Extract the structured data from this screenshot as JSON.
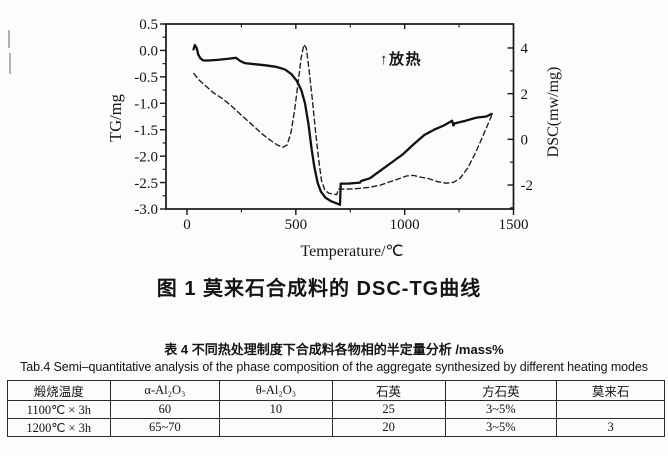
{
  "figure": {
    "caption": "图 1  莫来石合成料的 DSC-TG曲线",
    "xlabel": "Temperature/℃",
    "ylabel_left": "TG/mg",
    "ylabel_right": "DSC(mw/mg)",
    "annotation": "↑放热"
  },
  "chart_data": {
    "type": "line",
    "title": "图 1 莫来石合成料的 DSC-TG曲线",
    "xlabel": "Temperature/℃",
    "ylabel_left": "TG/mg",
    "ylabel_right": "DSC(mw/mg)",
    "xlim": [
      -96.5,
      1500
    ],
    "ylim_left": [
      -3.0,
      0.5
    ],
    "ylim_right": [
      -3.05,
      5.05
    ],
    "x_ticks": [
      0,
      500,
      1000,
      1500
    ],
    "x_minor_ticks": [
      250,
      750,
      1250
    ],
    "top_ticks": [
      250,
      500,
      750,
      1000,
      1250
    ],
    "y_left_ticks": [
      0.5,
      0.0,
      -0.5,
      -1.0,
      -1.5,
      -2.0,
      -2.5,
      -3.0
    ],
    "y_left_minor_ticks": [
      0.25,
      -0.25,
      -0.75,
      -1.25,
      -1.75,
      -2.25,
      -2.75
    ],
    "y_right_ticks": [
      4,
      2,
      0,
      -2
    ],
    "y_right_minor_ticks": [
      3,
      1,
      -1,
      -3
    ],
    "grid": false,
    "legend": "none",
    "annotation": "↑放热 (exothermic up)",
    "series": [
      {
        "name": "TG",
        "axis": "left",
        "style": "solid",
        "points": [
          [
            30,
            0.02
          ],
          [
            36,
            0.1
          ],
          [
            44,
            0.05
          ],
          [
            52,
            -0.08
          ],
          [
            62,
            -0.15
          ],
          [
            75,
            -0.19
          ],
          [
            100,
            -0.19
          ],
          [
            140,
            -0.18
          ],
          [
            185,
            -0.16
          ],
          [
            225,
            -0.14
          ],
          [
            245,
            -0.2
          ],
          [
            265,
            -0.24
          ],
          [
            310,
            -0.26
          ],
          [
            355,
            -0.28
          ],
          [
            410,
            -0.31
          ],
          [
            450,
            -0.36
          ],
          [
            480,
            -0.45
          ],
          [
            505,
            -0.58
          ],
          [
            525,
            -0.75
          ],
          [
            542,
            -1.0
          ],
          [
            558,
            -1.4
          ],
          [
            572,
            -1.85
          ],
          [
            585,
            -2.2
          ],
          [
            600,
            -2.5
          ],
          [
            615,
            -2.67
          ],
          [
            635,
            -2.78
          ],
          [
            660,
            -2.85
          ],
          [
            685,
            -2.89
          ],
          [
            703,
            -2.92
          ],
          [
            706,
            -2.52
          ],
          [
            740,
            -2.52
          ],
          [
            795,
            -2.5
          ],
          [
            800,
            -2.47
          ],
          [
            840,
            -2.42
          ],
          [
            890,
            -2.27
          ],
          [
            940,
            -2.12
          ],
          [
            990,
            -1.97
          ],
          [
            1040,
            -1.78
          ],
          [
            1090,
            -1.6
          ],
          [
            1135,
            -1.5
          ],
          [
            1180,
            -1.42
          ],
          [
            1218,
            -1.33
          ],
          [
            1224,
            -1.42
          ],
          [
            1230,
            -1.38
          ],
          [
            1280,
            -1.33
          ],
          [
            1330,
            -1.27
          ],
          [
            1375,
            -1.25
          ],
          [
            1400,
            -1.2
          ]
        ]
      },
      {
        "name": "DSC",
        "axis": "right",
        "style": "dashed",
        "points": [
          [
            30,
            2.9
          ],
          [
            55,
            2.6
          ],
          [
            85,
            2.35
          ],
          [
            120,
            2.05
          ],
          [
            160,
            1.8
          ],
          [
            200,
            1.5
          ],
          [
            240,
            1.15
          ],
          [
            280,
            0.8
          ],
          [
            315,
            0.5
          ],
          [
            350,
            0.2
          ],
          [
            385,
            -0.05
          ],
          [
            415,
            -0.25
          ],
          [
            440,
            -0.35
          ],
          [
            460,
            -0.25
          ],
          [
            478,
            0.3
          ],
          [
            495,
            1.3
          ],
          [
            512,
            2.6
          ],
          [
            525,
            3.6
          ],
          [
            537,
            4.15
          ],
          [
            548,
            4.0
          ],
          [
            560,
            3.1
          ],
          [
            575,
            1.8
          ],
          [
            590,
            0.4
          ],
          [
            605,
            -0.9
          ],
          [
            618,
            -1.8
          ],
          [
            632,
            -2.2
          ],
          [
            650,
            -2.35
          ],
          [
            670,
            -2.4
          ],
          [
            688,
            -2.42
          ],
          [
            695,
            -2.18
          ],
          [
            740,
            -2.18
          ],
          [
            790,
            -2.15
          ],
          [
            840,
            -2.1
          ],
          [
            890,
            -2.0
          ],
          [
            935,
            -1.85
          ],
          [
            975,
            -1.72
          ],
          [
            1010,
            -1.6
          ],
          [
            1040,
            -1.58
          ],
          [
            1070,
            -1.65
          ],
          [
            1110,
            -1.72
          ],
          [
            1150,
            -1.85
          ],
          [
            1190,
            -1.92
          ],
          [
            1225,
            -1.88
          ],
          [
            1255,
            -1.7
          ],
          [
            1290,
            -1.25
          ],
          [
            1325,
            -0.6
          ],
          [
            1360,
            0.15
          ],
          [
            1400,
            1.05
          ]
        ]
      }
    ]
  },
  "table": {
    "title_zh": "表 4  不同热处理制度下合成料各物相的半定量分析 /mass%",
    "title_en": "Tab.4 Semi–quantitative analysis of the phase composition of the aggregate synthesized by different heating modes",
    "headers": [
      "煅烧温度",
      "α-Al₂O₃",
      "θ-Al₂O₃",
      "石英",
      "方石英",
      "莫来石"
    ],
    "rows": [
      [
        "1100℃ × 3h",
        "60",
        "10",
        "25",
        "3~5%",
        ""
      ],
      [
        "1200℃ × 3h",
        "65~70",
        "",
        "20",
        "3~5%",
        "3"
      ]
    ]
  }
}
